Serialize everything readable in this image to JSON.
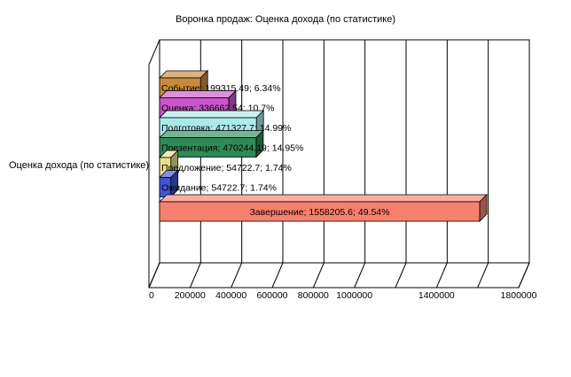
{
  "chart_data": {
    "type": "bar",
    "orientation": "horizontal",
    "render": "3d",
    "title": "Воронка продаж: Оценка дохода (по статистике)",
    "series_axis_label": "Оценка дохода (по статистике)",
    "xlim": [
      0,
      1800000
    ],
    "xticks": [
      0,
      200000,
      400000,
      600000,
      800000,
      1000000,
      1400000,
      1800000
    ],
    "tick_labels": [
      "0",
      "200000",
      "400000",
      "600000",
      "800000",
      "1000000",
      "1400000",
      "1800000"
    ],
    "grid": true,
    "categories": [
      "Событие",
      "Оценка",
      "Подготовка",
      "Презентация",
      "Предложение",
      "Ожидание",
      "Завершение"
    ],
    "values": [
      199315.49,
      336662.54,
      471327.7,
      470244.19,
      54722.7,
      54722.7,
      1558205.6
    ],
    "labels": [
      "Событие; 199315.49; 6.34%",
      "Оценка; 336662.54; 10.7%",
      "Подготовка; 471327.7; 14.99%",
      "Презентация; 470244.19; 14.95%",
      "Предложение; 54722.7; 1.74%",
      "Ожидание; 54722.7; 1.74%",
      "Завершение; 1558205.6; 49.54%"
    ],
    "colors": [
      "#c98a3c",
      "#cc55cc",
      "#aee9ea",
      "#2e8b57",
      "#e8e08a",
      "#3f56d6",
      "#f7806f"
    ]
  }
}
